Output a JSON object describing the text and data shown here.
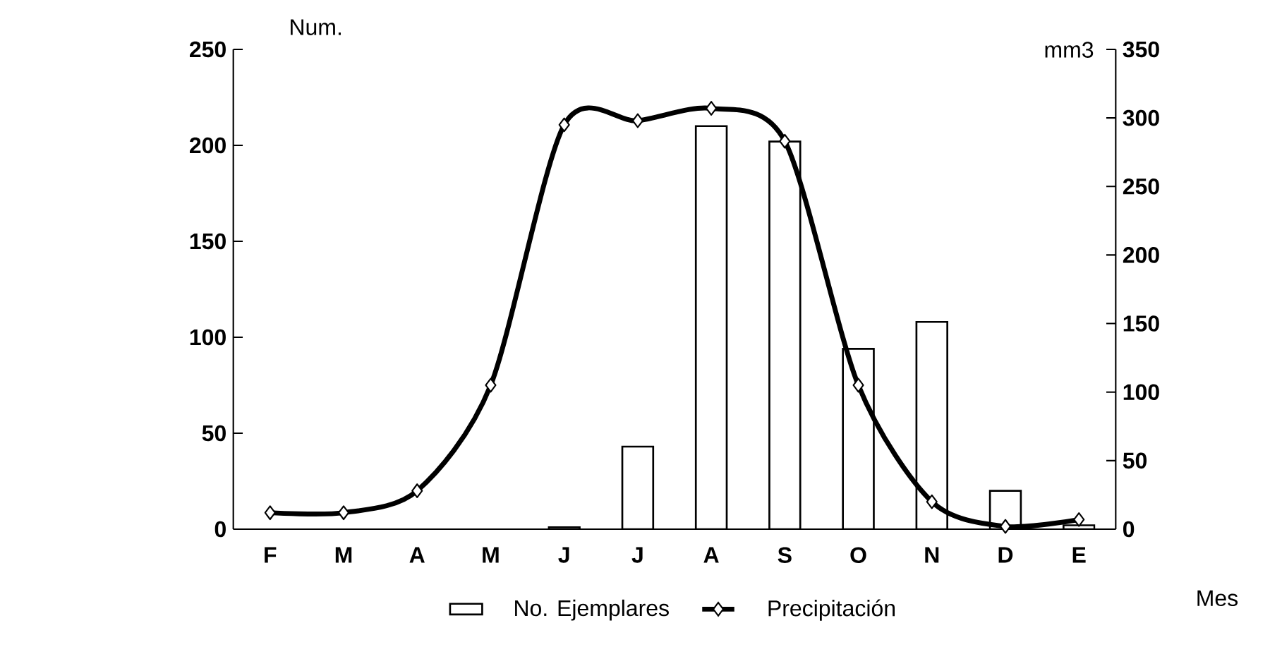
{
  "chart_data": {
    "type": "bar",
    "xlabel": "Mes",
    "ylabel": "Num.",
    "y2label": "mm3",
    "categories": [
      "F",
      "M",
      "A",
      "M",
      "J",
      "J",
      "A",
      "S",
      "O",
      "N",
      "D",
      "E"
    ],
    "series": [
      {
        "name": "No. Ejemplares",
        "color": "#ffffff",
        "values": [
          0,
          0,
          0,
          0,
          1,
          43,
          210,
          202,
          94,
          108,
          20,
          2
        ]
      },
      {
        "name": "Precipitación",
        "type": "line",
        "axis": "y2",
        "color": "#000000",
        "marker": "diamond",
        "values": [
          12,
          12,
          28,
          105,
          295,
          298,
          307,
          283,
          105,
          20,
          2,
          7
        ]
      }
    ],
    "ylim": [
      0,
      250
    ],
    "yticks": [
      0,
      50,
      100,
      150,
      200,
      250
    ],
    "y2lim": [
      0,
      350
    ],
    "y2ticks": [
      0,
      50,
      100,
      150,
      200,
      250,
      300,
      350
    ],
    "grid": false,
    "legend": "bottom"
  }
}
